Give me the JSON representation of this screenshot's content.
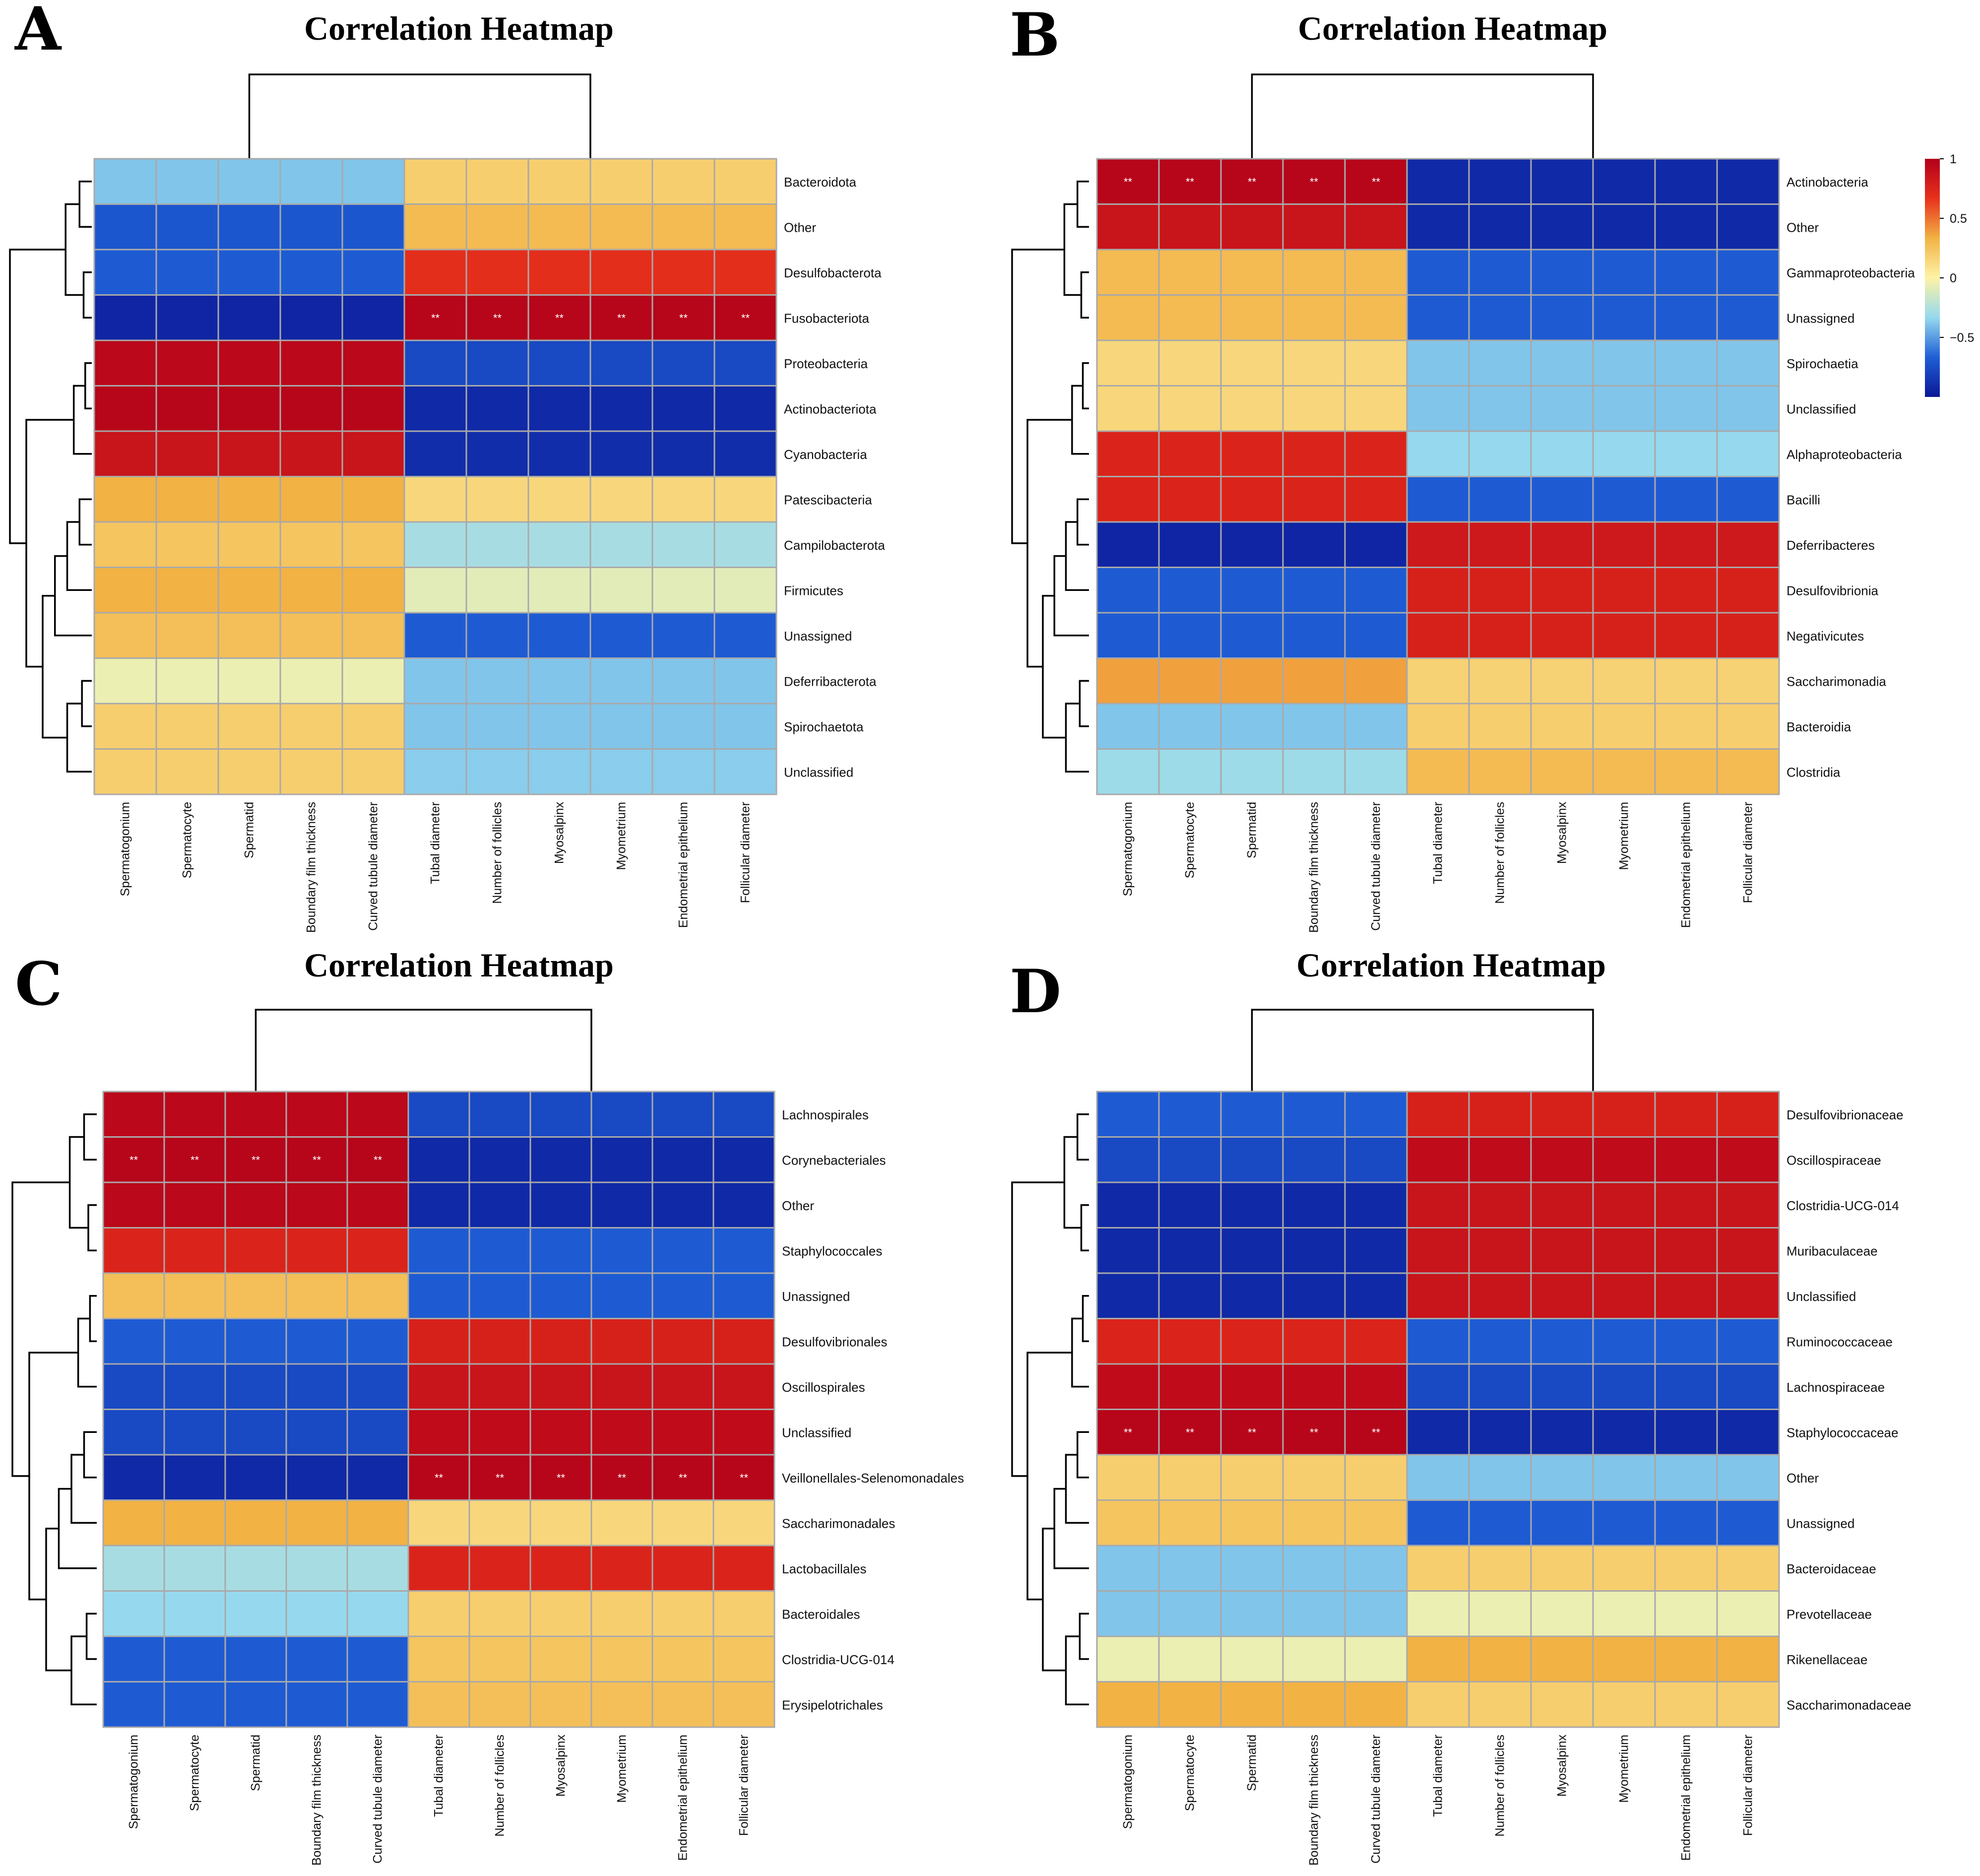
{
  "legend": {
    "ticks": [
      "1",
      "0.5",
      "0",
      "−0.5"
    ],
    "scale": [
      -1,
      1
    ],
    "colors": [
      "#0b1796",
      "#1f5fd6",
      "#96d9ee",
      "#fdf3a6",
      "#f2b244",
      "#e8311c",
      "#b2001a"
    ]
  },
  "chart_data": [
    {
      "type": "heatmap",
      "panel": "A",
      "title": "Correlation Heatmap",
      "columns": [
        "Spermatogonium",
        "Spermatocyte",
        "Spermatid",
        "Boundary film thickness",
        "Curved tubule diameter",
        "Tubal diameter",
        "Number of follicles",
        "Myosalpinx",
        "Myometrium",
        "Endometrial epithelium",
        "Follicular diameter"
      ],
      "rows": [
        "Bacteroidota",
        "Other",
        "Desulfobacterota",
        "Fusobacteriota",
        "Proteobacteria",
        "Actinobacteriota",
        "Cyanobacteria",
        "Patescibacteria",
        "Campilobacterota",
        "Firmicutes",
        "Unassigned",
        "Deferribacterota",
        "Spirochaetota",
        "Unclassified"
      ],
      "row_values": [
        [
          -0.35,
          0.2
        ],
        [
          -0.65,
          0.3
        ],
        [
          -0.62,
          0.72
        ],
        [
          -0.92,
          0.97
        ],
        [
          0.95,
          -0.72
        ],
        [
          0.97,
          -0.9
        ],
        [
          0.88,
          -0.88
        ],
        [
          0.35,
          0.15
        ],
        [
          0.25,
          -0.25
        ],
        [
          0.35,
          -0.08
        ],
        [
          0.28,
          -0.62
        ],
        [
          -0.05,
          -0.35
        ],
        [
          0.2,
          -0.35
        ],
        [
          0.2,
          -0.33
        ]
      ],
      "significance": [
        {
          "row": 3,
          "columns": [
            5,
            6,
            7,
            8,
            9,
            10
          ],
          "mark": "**"
        }
      ]
    },
    {
      "type": "heatmap",
      "panel": "B",
      "title": "Correlation Heatmap",
      "columns": [
        "Spermatogonium",
        "Spermatocyte",
        "Spermatid",
        "Boundary film thickness",
        "Curved tubule diameter",
        "Tubal diameter",
        "Number of follicles",
        "Myosalpinx",
        "Myometrium",
        "Endometrial epithelium",
        "Follicular diameter"
      ],
      "rows": [
        "Actinobacteria",
        "Other",
        "Gammaproteobacteria",
        "Unassigned",
        "Spirochaetia",
        "Unclassified",
        "Alphaproteobacteria",
        "Bacilli",
        "Deferribacteres",
        "Desulfovibrionia",
        "Negativicutes",
        "Saccharimonadia",
        "Bacteroidia",
        "Clostridia"
      ],
      "row_values": [
        [
          0.97,
          -0.9
        ],
        [
          0.88,
          -0.9
        ],
        [
          0.3,
          -0.62
        ],
        [
          0.3,
          -0.62
        ],
        [
          0.15,
          -0.35
        ],
        [
          0.15,
          -0.35
        ],
        [
          0.78,
          -0.3
        ],
        [
          0.78,
          -0.62
        ],
        [
          -0.92,
          0.85
        ],
        [
          -0.62,
          0.8
        ],
        [
          -0.62,
          0.8
        ],
        [
          0.4,
          0.18
        ],
        [
          -0.35,
          0.2
        ],
        [
          -0.28,
          0.3
        ]
      ],
      "significance": [
        {
          "row": 0,
          "columns": [
            0,
            1,
            2,
            3,
            4
          ],
          "mark": "**"
        }
      ]
    },
    {
      "type": "heatmap",
      "panel": "C",
      "title": "Correlation Heatmap",
      "columns": [
        "Spermatogonium",
        "Spermatocyte",
        "Spermatid",
        "Boundary film thickness",
        "Curved tubule diameter",
        "Tubal diameter",
        "Number of follicles",
        "Myosalpinx",
        "Myometrium",
        "Endometrial epithelium",
        "Follicular diameter"
      ],
      "rows": [
        "Lachnospirales",
        "Corynebacteriales",
        "Other",
        "Staphylococcales",
        "Unassigned",
        "Desulfovibrionales",
        "Oscillospirales",
        "Unclassified",
        "Veillonellales-Selenomonadales",
        "Saccharimonadales",
        "Lactobacillales",
        "Bacteroidales",
        "Clostridia-UCG-014",
        "Erysipelotrichales"
      ],
      "row_values": [
        [
          0.95,
          -0.72
        ],
        [
          0.97,
          -0.9
        ],
        [
          0.95,
          -0.9
        ],
        [
          0.78,
          -0.62
        ],
        [
          0.28,
          -0.62
        ],
        [
          -0.62,
          0.8
        ],
        [
          -0.72,
          0.88
        ],
        [
          -0.72,
          0.93
        ],
        [
          -0.9,
          0.97
        ],
        [
          0.35,
          0.15
        ],
        [
          -0.25,
          0.78
        ],
        [
          -0.3,
          0.2
        ],
        [
          -0.62,
          0.25
        ],
        [
          -0.62,
          0.28
        ]
      ],
      "significance": [
        {
          "row": 1,
          "columns": [
            0,
            1,
            2,
            3,
            4
          ],
          "mark": "**"
        },
        {
          "row": 8,
          "columns": [
            5,
            6,
            7,
            8,
            9,
            10
          ],
          "mark": "**"
        }
      ]
    },
    {
      "type": "heatmap",
      "panel": "D",
      "title": "Correlation Heatmap",
      "columns": [
        "Spermatogonium",
        "Spermatocyte",
        "Spermatid",
        "Boundary film thickness",
        "Curved tubule diameter",
        "Tubal diameter",
        "Number of follicles",
        "Myosalpinx",
        "Myometrium",
        "Endometrial epithelium",
        "Follicular diameter"
      ],
      "rows": [
        "Desulfovibrionaceae",
        "Oscillospiraceae",
        "Clostridia-UCG-014",
        "Muribaculaceae",
        "Unclassified",
        "Ruminococcaceae",
        "Lachnospiraceae",
        "Staphylococcaceae",
        "Other",
        "Unassigned",
        "Bacteroidaceae",
        "Prevotellaceae",
        "Rikenellaceae",
        "Saccharimonadaceae"
      ],
      "row_values": [
        [
          -0.62,
          0.8
        ],
        [
          -0.72,
          0.93
        ],
        [
          -0.9,
          0.88
        ],
        [
          -0.9,
          0.88
        ],
        [
          -0.9,
          0.88
        ],
        [
          0.78,
          -0.62
        ],
        [
          0.93,
          -0.72
        ],
        [
          0.97,
          -0.9
        ],
        [
          0.2,
          -0.35
        ],
        [
          0.25,
          -0.62
        ],
        [
          -0.35,
          0.2
        ],
        [
          -0.35,
          -0.05
        ],
        [
          -0.05,
          0.35
        ],
        [
          0.35,
          0.2
        ]
      ],
      "significance": [
        {
          "row": 7,
          "columns": [
            0,
            1,
            2,
            3,
            4
          ],
          "mark": "**"
        }
      ]
    }
  ]
}
